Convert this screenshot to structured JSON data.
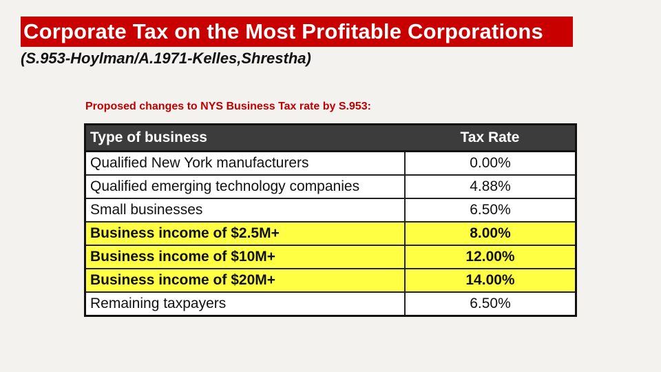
{
  "title": "Corporate Tax on the Most Profitable Corporations",
  "subtitle": "(S.953-Hoylman/A.1971-Kelles,Shrestha)",
  "subheading": "Proposed changes to NYS Business Tax rate by S.953:",
  "table": {
    "headers": [
      "Type of business",
      "Tax Rate"
    ],
    "rows": [
      {
        "type": "Qualified New York manufacturers",
        "rate": "0.00%",
        "highlight": false
      },
      {
        "type": "Qualified emerging technology companies",
        "rate": "4.88%",
        "highlight": false
      },
      {
        "type": "Small businesses",
        "rate": "6.50%",
        "highlight": false
      },
      {
        "type": "Business income of $2.5M+",
        "rate": "8.00%",
        "highlight": true
      },
      {
        "type": "Business income of $10M+",
        "rate": "12.00%",
        "highlight": true
      },
      {
        "type": "Business income of $20M+",
        "rate": "14.00%",
        "highlight": true
      },
      {
        "type": "Remaining taxpayers",
        "rate": "6.50%",
        "highlight": false
      }
    ]
  },
  "colors": {
    "title_bg": "#c80000",
    "highlight": "#ffff44",
    "header_bg": "#3c3c3c",
    "subheading": "#c00000"
  }
}
